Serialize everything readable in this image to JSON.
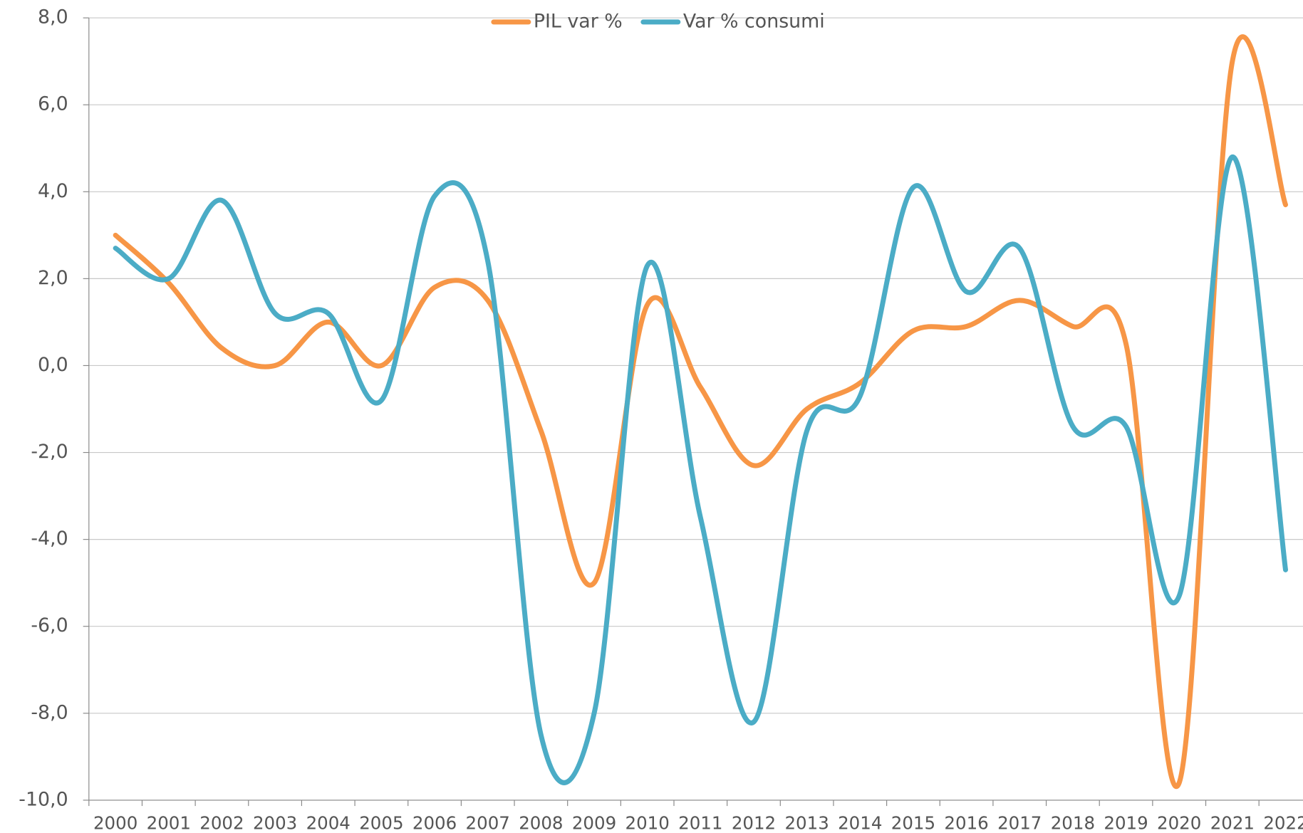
{
  "chart_data": {
    "type": "line",
    "categories": [
      "2000",
      "2001",
      "2002",
      "2003",
      "2004",
      "2005",
      "2006",
      "2007",
      "2008",
      "2009",
      "2010",
      "2011",
      "2012",
      "2013",
      "2014",
      "2015",
      "2016",
      "2017",
      "2018",
      "2019",
      "2020",
      "2021",
      "2022"
    ],
    "series": [
      {
        "name": "PIL var %",
        "color": "#f79646",
        "values": [
          3.0,
          1.9,
          0.4,
          0.0,
          1.0,
          0.0,
          1.8,
          1.5,
          -1.5,
          -5.0,
          1.4,
          -0.5,
          -2.3,
          -1.0,
          -0.4,
          0.8,
          0.9,
          1.5,
          0.9,
          0.5,
          -9.6,
          7.0,
          3.7
        ]
      },
      {
        "name": "Var % consumi",
        "color": "#4bacc6",
        "values": [
          2.7,
          2.0,
          3.8,
          1.2,
          1.2,
          -0.8,
          3.9,
          2.4,
          -8.5,
          -8.0,
          2.3,
          -3.5,
          -8.2,
          -1.5,
          -0.7,
          4.1,
          1.7,
          2.7,
          -1.4,
          -1.4,
          -5.3,
          4.8,
          -4.7
        ]
      }
    ],
    "ylim": [
      -10,
      8
    ],
    "yticks": [
      {
        "value": -10,
        "label": "-10,0"
      },
      {
        "value": -8,
        "label": "-8,0"
      },
      {
        "value": -6,
        "label": "-6,0"
      },
      {
        "value": -4,
        "label": "-4,0"
      },
      {
        "value": -2,
        "label": "-2,0"
      },
      {
        "value": 0,
        "label": "0,0"
      },
      {
        "value": 2,
        "label": "2,0"
      },
      {
        "value": 4,
        "label": "4,0"
      },
      {
        "value": 6,
        "label": "6,0"
      },
      {
        "value": 8,
        "label": "8,0"
      }
    ],
    "grid": true,
    "legend": "top"
  }
}
